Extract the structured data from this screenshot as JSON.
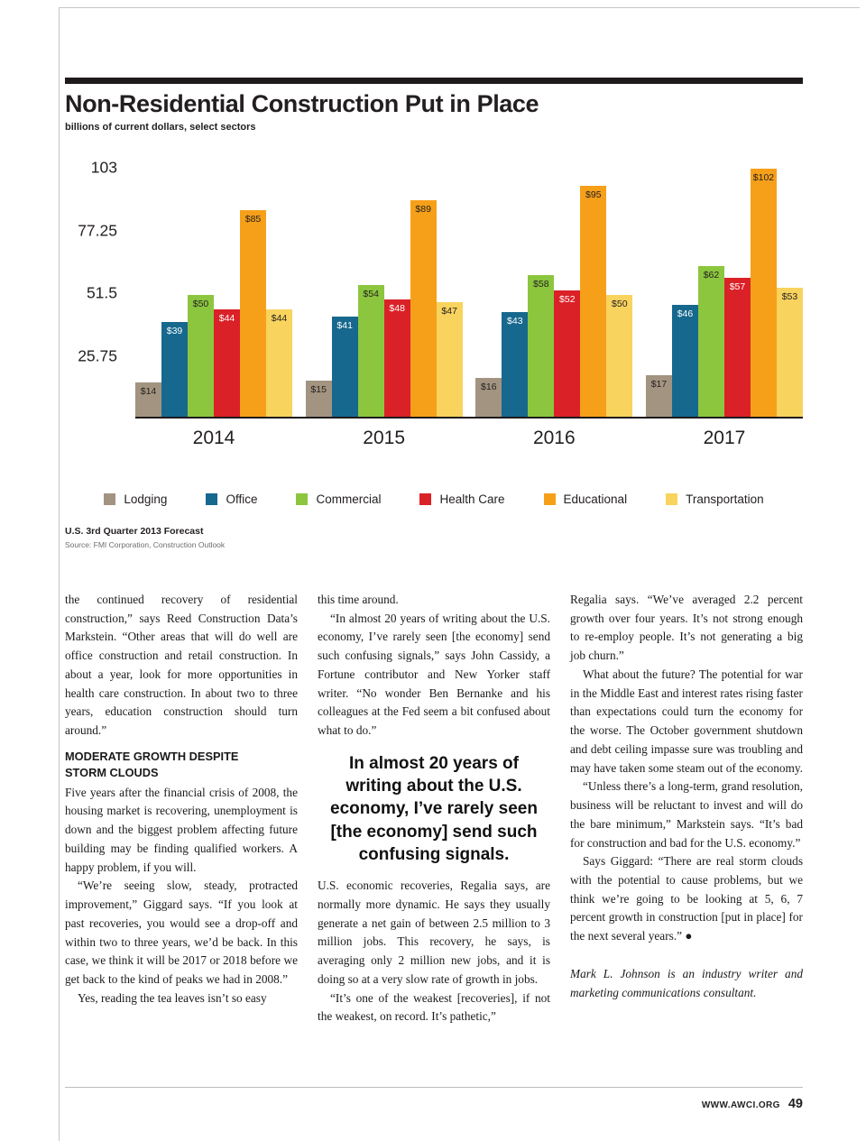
{
  "chart_data": {
    "type": "bar",
    "title": "Non-Residential Construction Put in Place",
    "subtitle": "billions of current dollars, select sectors",
    "categories": [
      "2014",
      "2015",
      "2016",
      "2017"
    ],
    "series": [
      {
        "name": "Lodging",
        "color": "#a29480",
        "label_color": "#231f20",
        "values": [
          14,
          15,
          16,
          17
        ]
      },
      {
        "name": "Office",
        "color": "#16688e",
        "label_color": "#ffffff",
        "values": [
          39,
          41,
          43,
          46
        ]
      },
      {
        "name": "Commercial",
        "color": "#8cc63e",
        "label_color": "#231f20",
        "values": [
          50,
          54,
          58,
          62
        ]
      },
      {
        "name": "Health Care",
        "color": "#da2128",
        "label_color": "#ffffff",
        "values": [
          44,
          48,
          52,
          57
        ]
      },
      {
        "name": "Educational",
        "color": "#f6a01a",
        "label_color": "#231f20",
        "values": [
          85,
          89,
          95,
          102
        ]
      },
      {
        "name": "Transportation",
        "color": "#f8d35e",
        "label_color": "#231f20",
        "values": [
          44,
          47,
          50,
          53
        ]
      }
    ],
    "ylim": [
      0,
      103
    ],
    "y_ticks": [
      "103",
      "77.25",
      "51.5",
      "25.75"
    ],
    "value_prefix": "$",
    "grid": false,
    "legend_position": "bottom"
  },
  "notes": {
    "forecast": "U.S. 3rd Quarter 2013 Forecast",
    "source": "Source: FMI Corporation, Construction Outlook"
  },
  "article": {
    "col1": {
      "p1": "the continued recovery of residential construction,” says Reed Construction Data’s Markstein. “Other areas that will do well are office construction and retail construction. In about a year, look for more opportunities in health care construction. In about two to three years, education construction should turn around.”",
      "heading": "MODERATE GROWTH DESPITE STORM CLOUDS",
      "p2": "Five years after the financial crisis of 2008, the housing market is recovering, unemployment is down and the biggest problem affecting future building may be finding qualified workers. A happy problem, if you will.",
      "p3": "“We’re seeing slow, steady, protracted improvement,” Giggard says. “If you look at past recoveries, you would see a drop-off and within two to three years, we’d be back. In this case, we think it will be 2017 or 2018 before we get back to the kind of peaks we had in 2008.”",
      "p4": "Yes, reading the tea leaves isn’t so easy"
    },
    "col2": {
      "p1": "this time around.",
      "p2": "“In almost 20 years of writing about the U.S. economy, I’ve rarely seen [the economy] send such confusing signals,” says John Cassidy, a Fortune contributor and New Yorker staff writer. “No wonder Ben Bernanke and his colleagues at the Fed seem a bit confused about what to do.”",
      "pullquote": "In almost 20 years of writing about the U.S. economy, I’ve rarely seen [the economy] send such confusing signals.",
      "p3": "U.S. economic recoveries, Regalia says, are normally more dynamic. He says they usually generate a net gain of between 2.5 million to 3 million jobs. This recovery, he says, is averaging only 2 million new jobs, and it is doing so at a very slow rate of growth in jobs.",
      "p4": "“It’s one of the weakest [recoveries], if not the weakest, on record. It’s pathetic,”"
    },
    "col3": {
      "p1": "Regalia says. “We’ve averaged 2.2 percent growth over four years. It’s not strong enough to re-employ people. It’s not generating a big job churn.”",
      "p2": "What about the future? The potential for war in the Middle East and interest rates rising faster than expectations could turn the economy for the worse. The October government shutdown and debt ceiling impasse sure was troubling and may have taken some steam out of the economy.",
      "p3": "“Unless there’s a long-term, grand resolution, business will be reluctant to invest and will do the bare minimum,” Markstein says. “It’s bad for construction and bad for the U.S. economy.”",
      "p4": "Says Giggard: “There are real storm clouds with the potential to cause problems, but we think we’re going to be looking at 5, 6, 7 percent growth in construction [put in place] for the next several years.” ●",
      "bio": "Mark L. Johnson is an industry writer and marketing communications consultant."
    }
  },
  "footer": {
    "site": "WWW.AWCI.ORG",
    "page_number": "49"
  }
}
